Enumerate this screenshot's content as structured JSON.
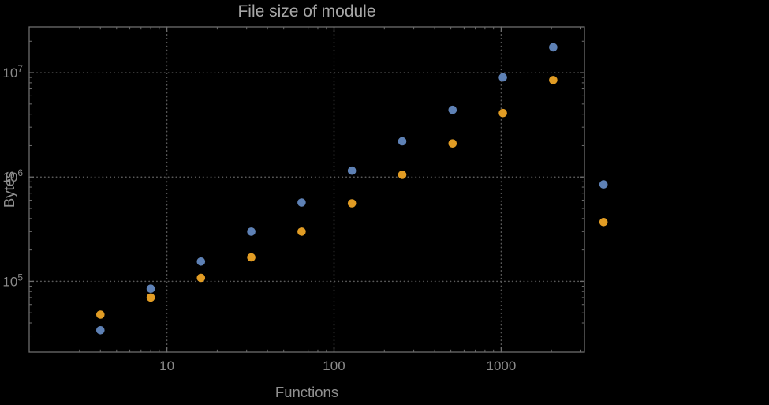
{
  "colors": {
    "background": "#000000",
    "title": "#a6a6a6",
    "axis_labels": "#8f8f8f",
    "tick_labels": "#8a8a8a",
    "frame": "#6d6d6d",
    "grid": "#5a5a5a",
    "series_blue": "#5e81b5",
    "series_orange": "#e19c24"
  },
  "chart_data": {
    "type": "scatter",
    "title": "File size of module",
    "xlabel": "Functions",
    "ylabel": "Bytes",
    "x_scale": "log",
    "y_scale": "log",
    "grid": "dotted major gridlines",
    "legend": "none",
    "xlim": [
      1.5,
      3150
    ],
    "ylim": [
      21000,
      27500000
    ],
    "x_ticks": [
      10,
      100,
      1000
    ],
    "x_tick_labels": [
      "10",
      "100",
      "1000"
    ],
    "y_ticks": [
      100000,
      1000000,
      10000000
    ],
    "y_tick_labels": [
      "10^5",
      "10^6",
      "10^7"
    ],
    "x": [
      4,
      8,
      16,
      32,
      64,
      128,
      256,
      512,
      1024,
      2048,
      4096
    ],
    "series": [
      {
        "name": "blue",
        "color": "#5e81b5",
        "values": [
          34000,
          85000,
          155000,
          300000,
          570000,
          1150000,
          2200000,
          4400000,
          9000000,
          17500000,
          850000
        ]
      },
      {
        "name": "orange",
        "color": "#e19c24",
        "values": [
          48000,
          70000,
          108000,
          170000,
          300000,
          560000,
          1050000,
          2100000,
          4100000,
          8500000,
          370000
        ]
      }
    ]
  }
}
